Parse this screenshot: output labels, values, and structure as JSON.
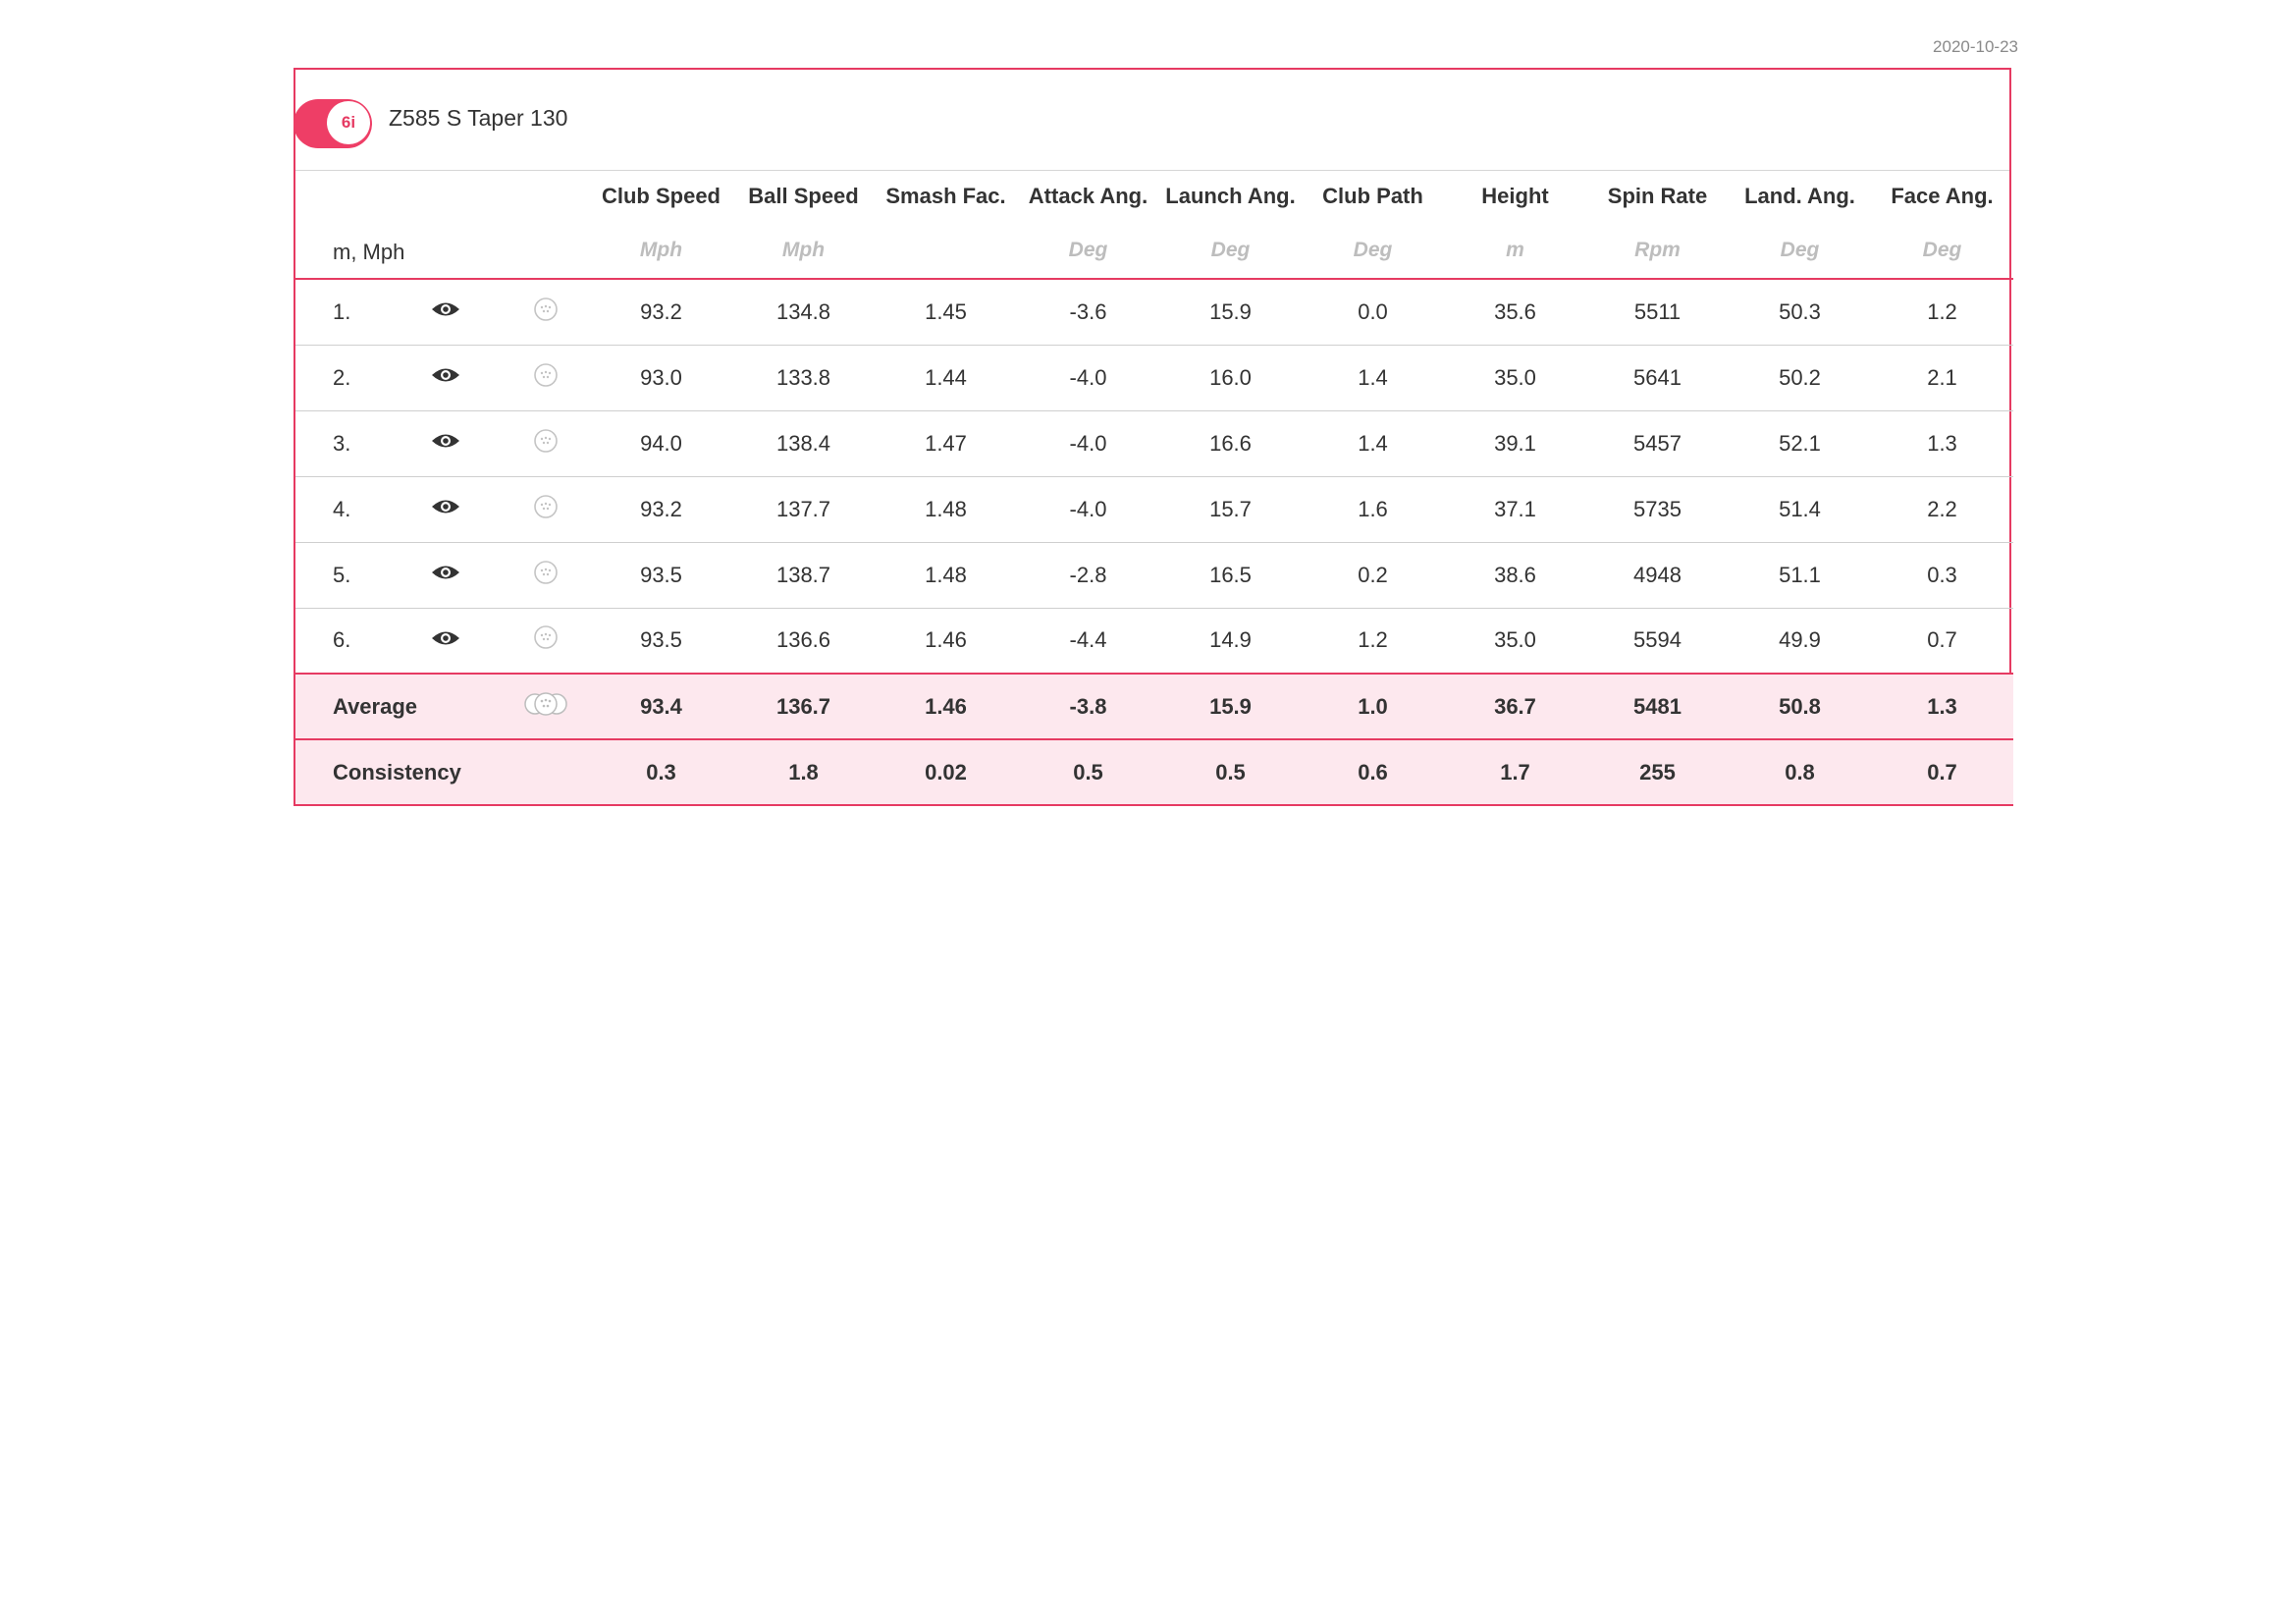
{
  "date": "2020-10-23",
  "club": {
    "badge": "6i",
    "name": "Z585 S Taper 130"
  },
  "units_label": "m, Mph",
  "columns": [
    {
      "title": "Club Speed",
      "unit": "Mph"
    },
    {
      "title": "Ball Speed",
      "unit": "Mph"
    },
    {
      "title": "Smash Fac.",
      "unit": ""
    },
    {
      "title": "Attack Ang.",
      "unit": "Deg"
    },
    {
      "title": "Launch Ang.",
      "unit": "Deg"
    },
    {
      "title": "Club Path",
      "unit": "Deg"
    },
    {
      "title": "Height",
      "unit": "m"
    },
    {
      "title": "Spin Rate",
      "unit": "Rpm"
    },
    {
      "title": "Land. Ang.",
      "unit": "Deg"
    },
    {
      "title": "Face Ang.",
      "unit": "Deg"
    }
  ],
  "shots": [
    {
      "num": "1.",
      "values": [
        "93.2",
        "134.8",
        "1.45",
        "-3.6",
        "15.9",
        "0.0",
        "35.6",
        "5511",
        "50.3",
        "1.2"
      ]
    },
    {
      "num": "2.",
      "values": [
        "93.0",
        "133.8",
        "1.44",
        "-4.0",
        "16.0",
        "1.4",
        "35.0",
        "5641",
        "50.2",
        "2.1"
      ]
    },
    {
      "num": "3.",
      "values": [
        "94.0",
        "138.4",
        "1.47",
        "-4.0",
        "16.6",
        "1.4",
        "39.1",
        "5457",
        "52.1",
        "1.3"
      ]
    },
    {
      "num": "4.",
      "values": [
        "93.2",
        "137.7",
        "1.48",
        "-4.0",
        "15.7",
        "1.6",
        "37.1",
        "5735",
        "51.4",
        "2.2"
      ]
    },
    {
      "num": "5.",
      "values": [
        "93.5",
        "138.7",
        "1.48",
        "-2.8",
        "16.5",
        "0.2",
        "38.6",
        "4948",
        "51.1",
        "0.3"
      ]
    },
    {
      "num": "6.",
      "values": [
        "93.5",
        "136.6",
        "1.46",
        "-4.4",
        "14.9",
        "1.2",
        "35.0",
        "5594",
        "49.9",
        "0.7"
      ]
    }
  ],
  "average": {
    "label": "Average",
    "values": [
      "93.4",
      "136.7",
      "1.46",
      "-3.8",
      "15.9",
      "1.0",
      "36.7",
      "5481",
      "50.8",
      "1.3"
    ]
  },
  "consistency": {
    "label": "Consistency",
    "values": [
      "0.3",
      "1.8",
      "0.02",
      "0.5",
      "0.5",
      "0.6",
      "1.7",
      "255",
      "0.8",
      "0.7"
    ]
  },
  "icons": {
    "shot_visibility": "eye-icon",
    "shot_group": "ball-icon",
    "average_group": "ball-cluster-icon"
  },
  "colors": {
    "accent": "#e63a62",
    "summary_bg": "#fde8ee",
    "unit_text": "#bdbdbd"
  }
}
